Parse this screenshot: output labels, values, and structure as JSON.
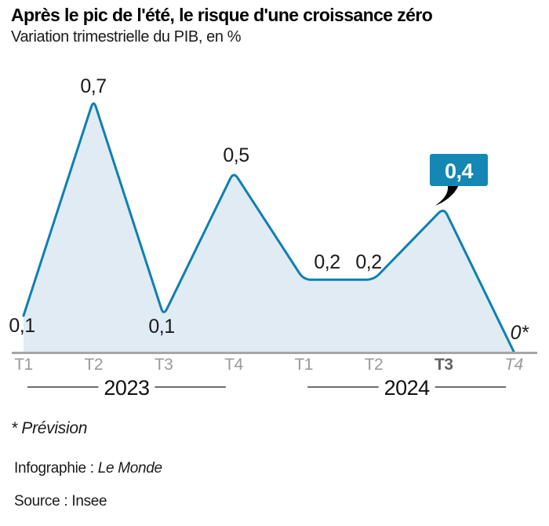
{
  "chart_data": {
    "type": "area",
    "title": "Après le pic de l'été, le risque d'une croissance zéro",
    "subtitle": "Variation trimestrielle du PIB, en %",
    "x": [
      "T1",
      "T2",
      "T3",
      "T4",
      "T1",
      "T2",
      "T3",
      "T4"
    ],
    "values": [
      0.1,
      0.7,
      0.1,
      0.5,
      0.2,
      0.2,
      0.4,
      0
    ],
    "point_labels": [
      "0,1",
      "0,7",
      "0,1",
      "0,5",
      "0,2",
      "0,2",
      "0,4",
      "0*"
    ],
    "highlight_index": 6,
    "forecast_index": 7,
    "year_groups": [
      {
        "label": "2023",
        "from": 0,
        "to": 3
      },
      {
        "label": "2024",
        "from": 4,
        "to": 7
      }
    ],
    "ylim": [
      0,
      0.75
    ],
    "unit": "%",
    "grid": false,
    "legend": "none",
    "colors": {
      "line": "#0f7fb2",
      "fill": "#e0ebf4",
      "callout": "#1487b4",
      "callout_text": "#ffffff",
      "axis": "#a6a6a6",
      "tick": "#9a9a9a",
      "tick_bold": "#636363",
      "label": "#1a1a1a",
      "year_line": "#3d3d3d"
    }
  },
  "footnote": {
    "prevision": "* Prévision",
    "credit_prefix": "Infographie : ",
    "credit_name": "Le Monde",
    "source": "Source : Insee"
  }
}
